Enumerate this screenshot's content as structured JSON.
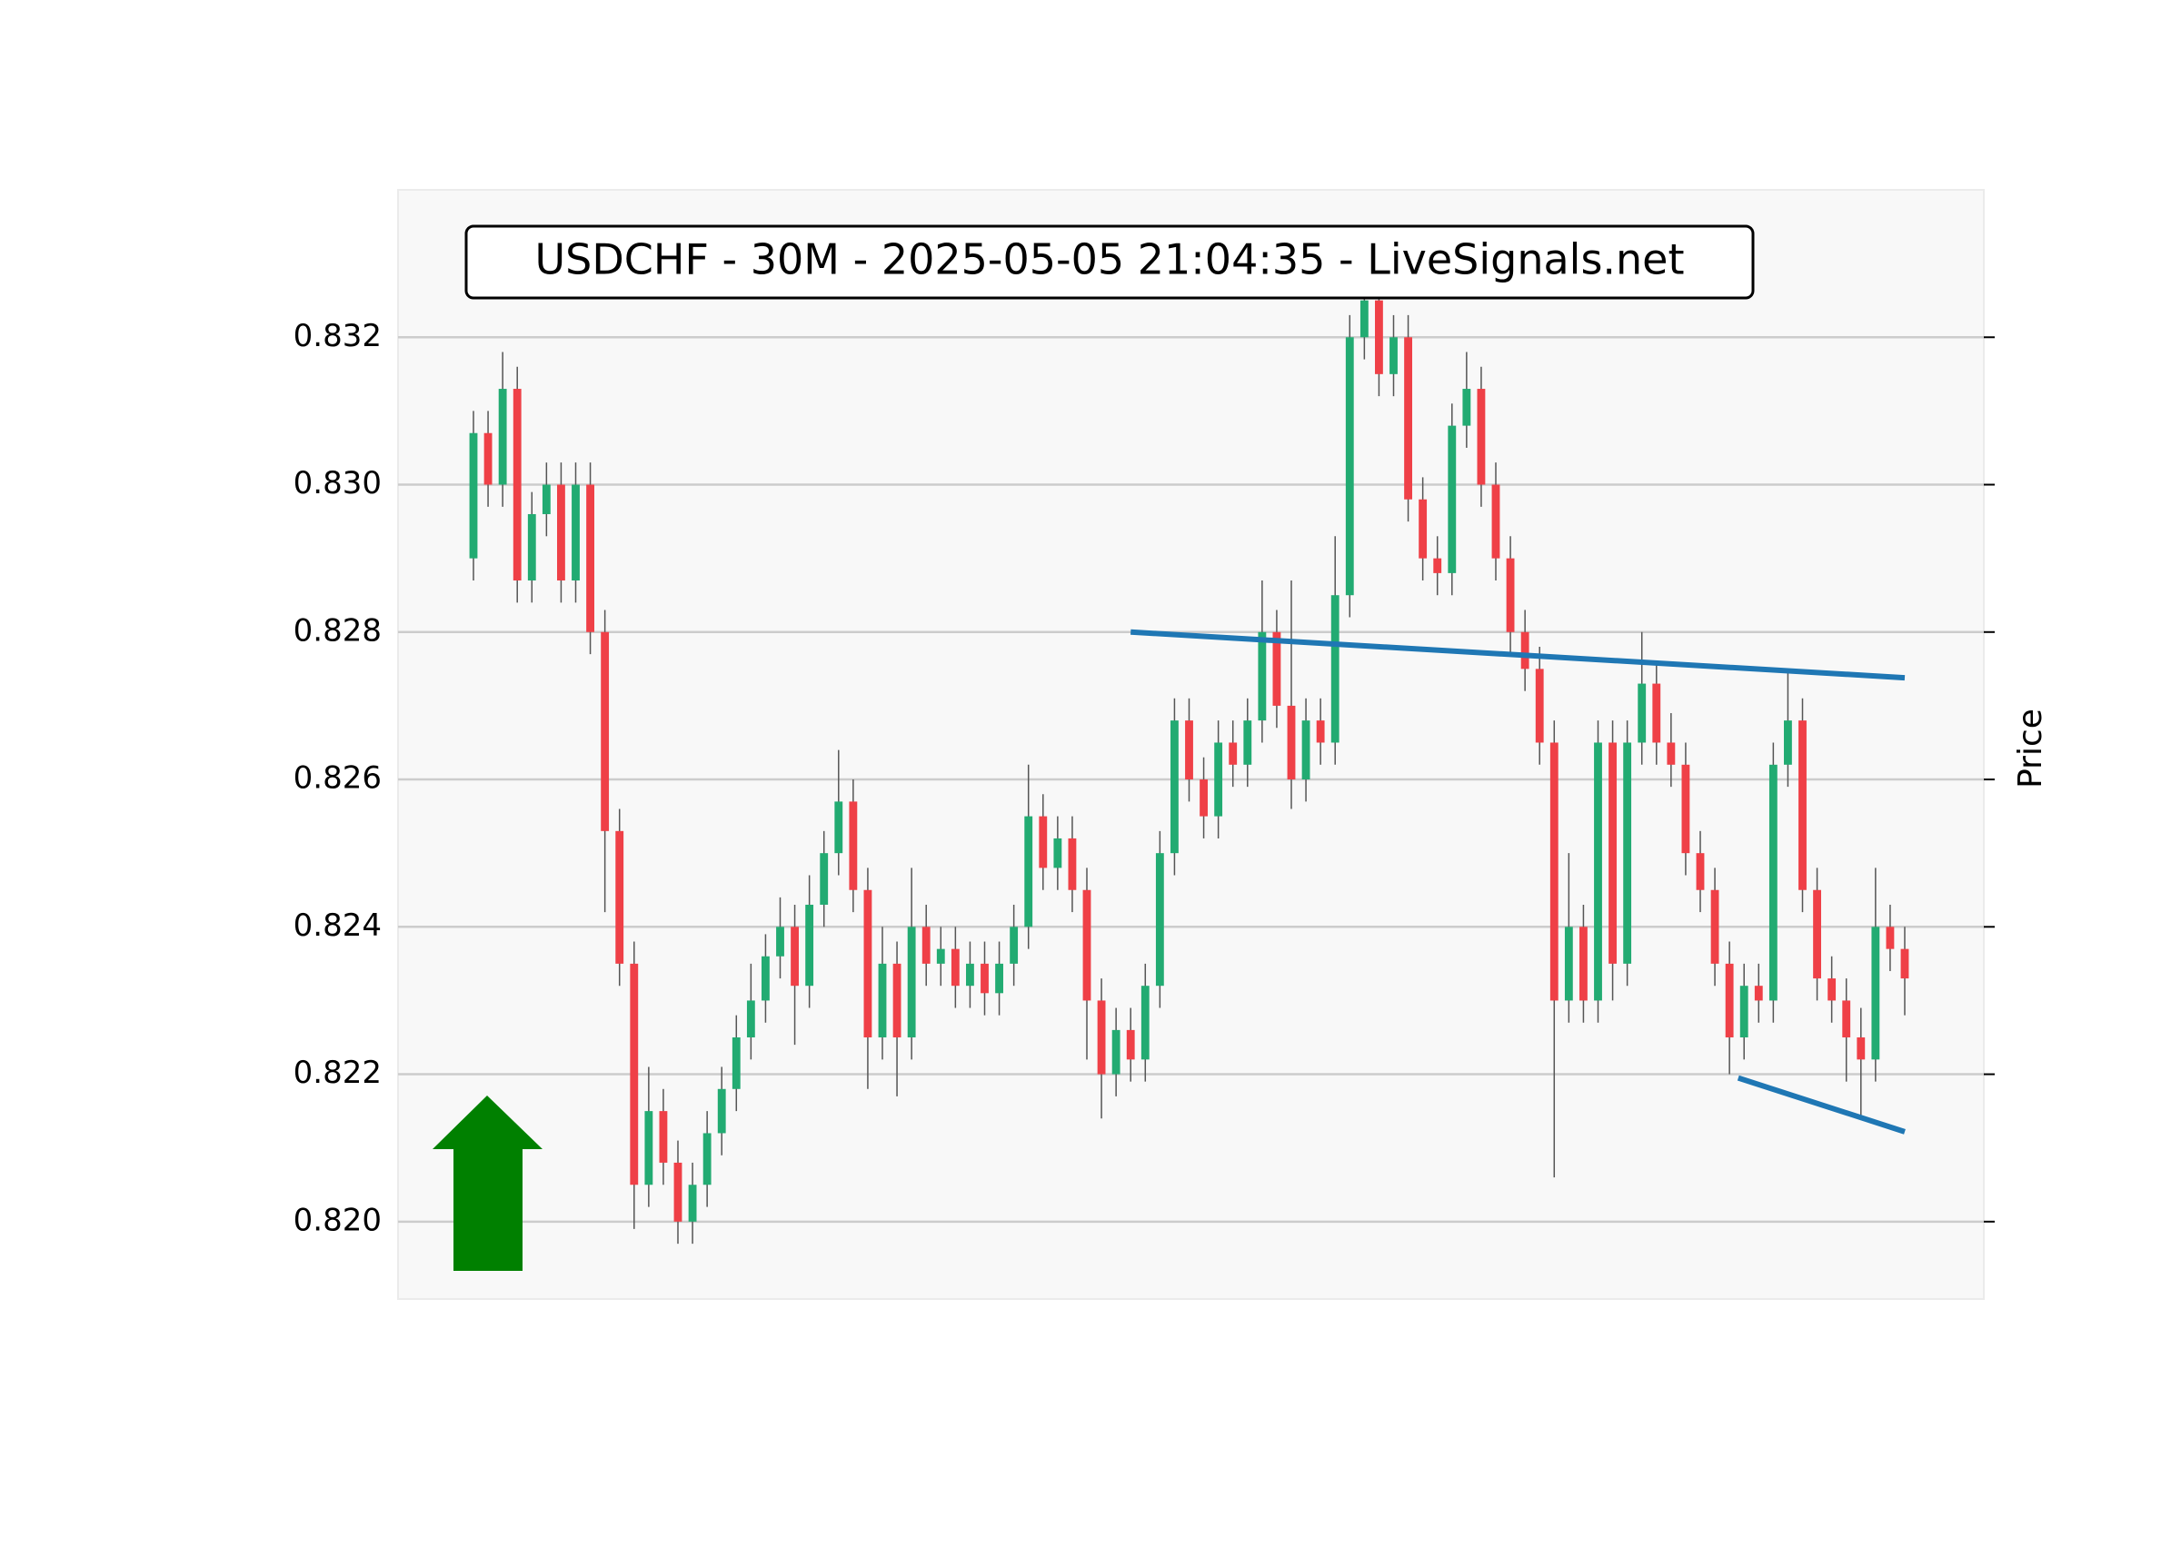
{
  "chart_data": {
    "type": "candlestick",
    "title": "USDCHF - 30M - 2025-05-05 21:04:35 - LiveSignals.net",
    "ylabel": "Price",
    "ylim": [
      0.81895,
      0.834
    ],
    "yticks": [
      {
        "value": 0.82,
        "label": "0.820"
      },
      0.822,
      0.824,
      0.826,
      0.828,
      {
        "value": 0.83,
        "label": "0.830"
      },
      0.832
    ],
    "grid": true,
    "up_color": "#22ab72",
    "down_color": "#ef4047",
    "open": [
      0.829,
      0.8307,
      0.83,
      0.8313,
      0.8287,
      0.8296,
      0.83,
      0.8287,
      0.83,
      0.828,
      0.8253,
      0.8235,
      0.8205,
      0.8215,
      0.8208,
      0.82,
      0.8205,
      0.8212,
      0.8218,
      0.8225,
      0.823,
      0.8236,
      0.824,
      0.8232,
      0.8243,
      0.825,
      0.8257,
      0.8245,
      0.8225,
      0.8235,
      0.8225,
      0.824,
      0.8235,
      0.8237,
      0.8232,
      0.8235,
      0.8231,
      0.8235,
      0.824,
      0.8255,
      0.8248,
      0.8252,
      0.8245,
      0.823,
      0.822,
      0.8226,
      0.8222,
      0.8232,
      0.825,
      0.8268,
      0.826,
      0.8255,
      0.8265,
      0.8262,
      0.8268,
      0.828,
      0.827,
      0.826,
      0.8268,
      0.8265,
      0.8285,
      0.832,
      0.8325,
      0.8315,
      0.832,
      0.8298,
      0.829,
      0.8288,
      0.8308,
      0.8313,
      0.83,
      0.829,
      0.828,
      0.8275,
      0.8265,
      0.823,
      0.824,
      0.823,
      0.8265,
      0.8235,
      0.8265,
      0.8273,
      0.8265,
      0.8262,
      0.825,
      0.8245,
      0.8235,
      0.8225,
      0.8232,
      0.823,
      0.8262,
      0.8268,
      0.8245,
      0.8233,
      0.823,
      0.8225,
      0.8222,
      0.824,
      0.8237
    ],
    "high": [
      0.831,
      0.831,
      0.8318,
      0.8316,
      0.8299,
      0.8303,
      0.8303,
      0.8303,
      0.8303,
      0.8283,
      0.8256,
      0.8238,
      0.8221,
      0.8218,
      0.8211,
      0.8208,
      0.8215,
      0.8221,
      0.8228,
      0.8235,
      0.8239,
      0.8244,
      0.8243,
      0.8247,
      0.8253,
      0.8264,
      0.826,
      0.8248,
      0.824,
      0.8238,
      0.8248,
      0.8243,
      0.824,
      0.824,
      0.8238,
      0.8238,
      0.8238,
      0.8243,
      0.8262,
      0.8258,
      0.8255,
      0.8255,
      0.8248,
      0.8233,
      0.8229,
      0.8229,
      0.8235,
      0.8253,
      0.8271,
      0.8271,
      0.8263,
      0.8268,
      0.8268,
      0.8271,
      0.8287,
      0.8283,
      0.8287,
      0.8271,
      0.8271,
      0.8293,
      0.8323,
      0.8328,
      0.8328,
      0.8323,
      0.8323,
      0.8301,
      0.8293,
      0.8311,
      0.8318,
      0.8316,
      0.8303,
      0.8293,
      0.8283,
      0.8278,
      0.8268,
      0.825,
      0.8243,
      0.8268,
      0.8268,
      0.8268,
      0.828,
      0.8276,
      0.8269,
      0.8265,
      0.8253,
      0.8248,
      0.8238,
      0.8235,
      0.8235,
      0.8265,
      0.8275,
      0.8271,
      0.8248,
      0.8236,
      0.8233,
      0.8229,
      0.8248,
      0.8243,
      0.824
    ],
    "low": [
      0.8287,
      0.8297,
      0.8297,
      0.8284,
      0.8284,
      0.8293,
      0.8284,
      0.8284,
      0.8277,
      0.8242,
      0.8232,
      0.8199,
      0.8202,
      0.8205,
      0.8197,
      0.8197,
      0.8202,
      0.8209,
      0.8215,
      0.8222,
      0.8227,
      0.8233,
      0.8224,
      0.8229,
      0.824,
      0.8247,
      0.8242,
      0.8218,
      0.8222,
      0.8217,
      0.8222,
      0.8232,
      0.8232,
      0.8229,
      0.8229,
      0.8228,
      0.8228,
      0.8232,
      0.8237,
      0.8245,
      0.8245,
      0.8242,
      0.8222,
      0.8214,
      0.8217,
      0.8219,
      0.8219,
      0.8229,
      0.8247,
      0.8257,
      0.8252,
      0.8252,
      0.8259,
      0.8259,
      0.8265,
      0.8267,
      0.8256,
      0.8257,
      0.8262,
      0.8262,
      0.8282,
      0.8317,
      0.8312,
      0.8312,
      0.8295,
      0.8287,
      0.8285,
      0.8285,
      0.8305,
      0.8297,
      0.8287,
      0.8277,
      0.8272,
      0.8262,
      0.8206,
      0.8227,
      0.8227,
      0.8227,
      0.823,
      0.8232,
      0.8262,
      0.8262,
      0.8259,
      0.8247,
      0.8242,
      0.8232,
      0.822,
      0.8222,
      0.8227,
      0.8227,
      0.8259,
      0.8242,
      0.823,
      0.8227,
      0.8219,
      0.8214,
      0.8219,
      0.8234,
      0.8228
    ],
    "close": [
      0.8307,
      0.83,
      0.8313,
      0.8287,
      0.8296,
      0.83,
      0.8287,
      0.83,
      0.828,
      0.8253,
      0.8235,
      0.8205,
      0.8215,
      0.8208,
      0.82,
      0.8205,
      0.8212,
      0.8218,
      0.8225,
      0.823,
      0.8236,
      0.824,
      0.8232,
      0.8243,
      0.825,
      0.8257,
      0.8245,
      0.8225,
      0.8235,
      0.8225,
      0.824,
      0.8235,
      0.8237,
      0.8232,
      0.8235,
      0.8231,
      0.8235,
      0.824,
      0.8255,
      0.8248,
      0.8252,
      0.8245,
      0.823,
      0.822,
      0.8226,
      0.8222,
      0.8232,
      0.825,
      0.8268,
      0.826,
      0.8255,
      0.8265,
      0.8262,
      0.8268,
      0.828,
      0.827,
      0.826,
      0.8268,
      0.8265,
      0.8285,
      0.832,
      0.8325,
      0.8315,
      0.832,
      0.8298,
      0.829,
      0.8288,
      0.8308,
      0.8313,
      0.83,
      0.829,
      0.828,
      0.8275,
      0.8265,
      0.823,
      0.824,
      0.823,
      0.8265,
      0.8235,
      0.8265,
      0.8273,
      0.8265,
      0.8262,
      0.825,
      0.8245,
      0.8235,
      0.8225,
      0.8232,
      0.823,
      0.8262,
      0.8268,
      0.8245,
      0.8233,
      0.823,
      0.8225,
      0.8222,
      0.824,
      0.8237,
      0.8233
    ],
    "trendlines": [
      {
        "color": "#1f77b4",
        "x": [
          45,
          98
        ],
        "y": [
          0.828,
          0.82738
        ]
      },
      {
        "color": "#1f77b4",
        "x": [
          86.6,
          98
        ],
        "y": [
          0.82195,
          0.82122
        ]
      }
    ]
  }
}
